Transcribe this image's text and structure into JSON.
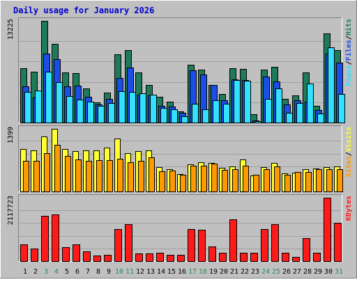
{
  "title": "Daily usage for January 2026",
  "colors": {
    "background": "#c0c0c0",
    "frame_light": "#ffffff",
    "frame_dark": "#808080",
    "plot_bg": "#c0c0c0",
    "grid": "#a0a0a0",
    "title": "#0000cc",
    "axis_text": "#000000",
    "weekend_text": "#2e8b57",
    "hits": "#1f7a5a",
    "files": "#1a4ee6",
    "pages": "#33e0ff",
    "visits": "#ffff33",
    "sites": "#ff9900",
    "kbytes": "#ff1a1a"
  },
  "chart_data": [
    {
      "type": "bar",
      "panel": "top",
      "max_label": "13225",
      "legend": [
        {
          "text": "Hits",
          "color": "#1f7a5a"
        },
        {
          "text": "Files",
          "color": "#1a4ee6"
        },
        {
          "text": "Pages",
          "color": "#33e0ff"
        }
      ],
      "categories": [
        "1",
        "2",
        "3",
        "4",
        "5",
        "6",
        "7",
        "8",
        "9",
        "10",
        "11",
        "12",
        "13",
        "14",
        "15",
        "16",
        "17",
        "18",
        "19",
        "20",
        "21",
        "22",
        "23",
        "24",
        "25",
        "26",
        "27",
        "28",
        "29",
        "30",
        "31"
      ],
      "series": [
        {
          "name": "Hits",
          "values": [
            7070,
            6570,
            13225,
            10250,
            6490,
            6400,
            4450,
            2650,
            3940,
            8910,
            9430,
            6490,
            4870,
            3350,
            2700,
            1450,
            7490,
            6860,
            4920,
            3750,
            7040,
            6930,
            1130,
            6860,
            7210,
            3120,
            3550,
            6510,
            2180,
            11600,
            9430
          ]
        },
        {
          "name": "Files",
          "values": [
            4700,
            3220,
            8930,
            8230,
            4700,
            4770,
            3370,
            2380,
            3080,
            5790,
            7160,
            3630,
            3520,
            2180,
            2040,
            1270,
            6770,
            6220,
            4860,
            2910,
            5640,
            5500,
            260,
            6000,
            5310,
            2370,
            2880,
            2760,
            1640,
            8990,
            7770
          ]
        },
        {
          "name": "Pages",
          "values": [
            4030,
            4190,
            6630,
            5210,
            3430,
            2960,
            2680,
            2180,
            2500,
            4110,
            3960,
            3780,
            3600,
            1910,
            1720,
            840,
            2410,
            1720,
            2900,
            2410,
            5510,
            5440,
            210,
            3080,
            4470,
            1270,
            2530,
            5100,
            1140,
            9810,
            3740
          ]
        }
      ]
    },
    {
      "type": "bar",
      "panel": "middle",
      "max_label": "1399",
      "legend": [
        {
          "text": "Visits",
          "color": "#ffff33"
        },
        {
          "text": "Sites",
          "color": "#ff9900"
        }
      ],
      "categories": [
        "1",
        "2",
        "3",
        "4",
        "5",
        "6",
        "7",
        "8",
        "9",
        "10",
        "11",
        "12",
        "13",
        "14",
        "15",
        "16",
        "17",
        "18",
        "19",
        "20",
        "21",
        "22",
        "23",
        "24",
        "25",
        "26",
        "27",
        "28",
        "29",
        "30",
        "31"
      ],
      "series": [
        {
          "name": "Visits",
          "values": [
            945,
            910,
            1234,
            1399,
            945,
            900,
            910,
            910,
            977,
            1187,
            860,
            900,
            910,
            540,
            500,
            390,
            600,
            660,
            630,
            530,
            555,
            710,
            360,
            540,
            630,
            410,
            420,
            500,
            510,
            540,
            560
          ]
        },
        {
          "name": "Sites",
          "values": [
            690,
            690,
            860,
            1040,
            790,
            720,
            690,
            695,
            700,
            735,
            650,
            685,
            760,
            450,
            460,
            380,
            570,
            580,
            620,
            480,
            500,
            580,
            370,
            500,
            560,
            380,
            430,
            440,
            500,
            500,
            490
          ]
        }
      ]
    },
    {
      "type": "bar",
      "panel": "bottom",
      "max_label": "2117723",
      "legend": [
        {
          "text": "KBytes",
          "color": "#ff1a1a"
        }
      ],
      "categories": [
        "1",
        "2",
        "3",
        "4",
        "5",
        "6",
        "7",
        "8",
        "9",
        "10",
        "11",
        "12",
        "13",
        "14",
        "15",
        "16",
        "17",
        "18",
        "19",
        "20",
        "21",
        "22",
        "23",
        "24",
        "25",
        "26",
        "27",
        "28",
        "29",
        "30",
        "31"
      ],
      "series": [
        {
          "name": "KBytes",
          "values": [
            567000,
            413000,
            1521000,
            1551000,
            473000,
            548000,
            328000,
            190000,
            220000,
            1071000,
            1239000,
            246000,
            261000,
            280000,
            204000,
            200000,
            1080000,
            1045000,
            483000,
            276000,
            1399000,
            275000,
            270000,
            1080000,
            1240000,
            275000,
            145000,
            758000,
            280000,
            2117723,
            1280000
          ]
        }
      ]
    }
  ]
}
